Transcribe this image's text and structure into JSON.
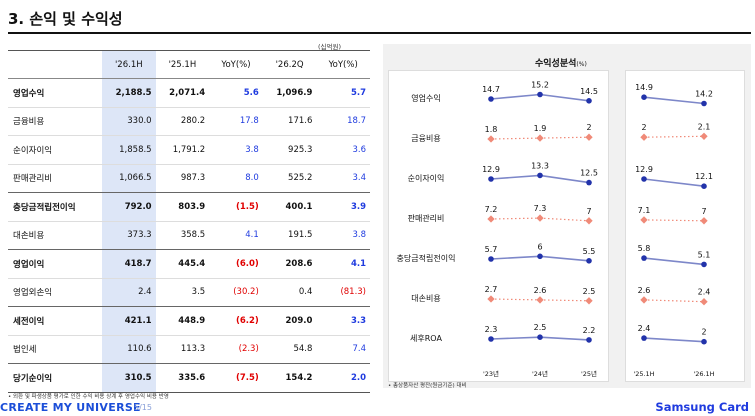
{
  "page": {
    "title": "3. 손익 및 수익성",
    "unit": "(십억원)",
    "table_note": "• 외환 및 파생상품 평가로 인한 수익 비용 상계 후 영업수익 비용 반영",
    "footer_brand": "CREATE MY UNIVERSE",
    "footer_page": "5/15",
    "footer_logo": "Samsung Card"
  },
  "table": {
    "headers": [
      "",
      "'26.1H",
      "'25.1H",
      "YoY(%)",
      "'26.2Q",
      "YoY(%)"
    ],
    "rows": [
      {
        "label": "영업수익",
        "bold": true,
        "values": [
          "2,188.5",
          "2,071.4",
          "5.6",
          "1,096.9",
          "5.7"
        ]
      },
      {
        "label": "금융비용",
        "bold": false,
        "values": [
          "330.0",
          "280.2",
          "17.8",
          "171.6",
          "18.7"
        ]
      },
      {
        "label": "순이자이익",
        "bold": false,
        "values": [
          "1,858.5",
          "1,791.2",
          "3.8",
          "925.3",
          "3.6"
        ]
      },
      {
        "label": "판매관리비",
        "bold": false,
        "values": [
          "1,066.5",
          "987.3",
          "8.0",
          "525.2",
          "3.4"
        ]
      },
      {
        "label": "충당금적립전이익",
        "bold": true,
        "values": [
          "792.0",
          "803.9",
          "(1.5)",
          "400.1",
          "3.9"
        ]
      },
      {
        "label": "대손비용",
        "bold": false,
        "values": [
          "373.3",
          "358.5",
          "4.1",
          "191.5",
          "3.8"
        ]
      },
      {
        "label": "영업이익",
        "bold": true,
        "values": [
          "418.7",
          "445.4",
          "(6.0)",
          "208.6",
          "4.1"
        ]
      },
      {
        "label": "영업외손익",
        "bold": false,
        "values": [
          "2.4",
          "3.5",
          "(30.2)",
          "0.4",
          "(81.3)"
        ]
      },
      {
        "label": "세전이익",
        "bold": true,
        "values": [
          "421.1",
          "448.9",
          "(6.2)",
          "209.0",
          "3.3"
        ]
      },
      {
        "label": "법인세",
        "bold": false,
        "values": [
          "110.6",
          "113.3",
          "(2.3)",
          "54.8",
          "7.4"
        ]
      },
      {
        "label": "당기순이익",
        "bold": true,
        "values": [
          "310.5",
          "335.6",
          "(7.5)",
          "154.2",
          "2.0"
        ]
      }
    ]
  },
  "chart_data": {
    "type": "line",
    "title": "수익성분석",
    "title_unit": "(%)",
    "note": "• 총상품자산 평잔(원금기준) 대비",
    "panels": [
      {
        "categories": [
          "'23년",
          "'24년",
          "'25년"
        ]
      },
      {
        "categories": [
          "'25.1H",
          "'26.1H"
        ]
      }
    ],
    "series": [
      {
        "name": "영업수익",
        "style": "solid",
        "color": "#2233aa",
        "panel1": [
          14.7,
          15.2,
          14.5
        ],
        "panel2": [
          14.9,
          14.2
        ]
      },
      {
        "name": "금융비용",
        "style": "dotted",
        "color": "#f08a78",
        "panel1": [
          1.8,
          1.9,
          2.0
        ],
        "panel2": [
          2.0,
          2.1
        ]
      },
      {
        "name": "순이자이익",
        "style": "solid",
        "color": "#2233aa",
        "panel1": [
          12.9,
          13.3,
          12.5
        ],
        "panel2": [
          12.9,
          12.1
        ]
      },
      {
        "name": "판매관리비",
        "style": "dotted",
        "color": "#f08a78",
        "panel1": [
          7.2,
          7.3,
          7.0
        ],
        "panel2": [
          7.1,
          7.0
        ]
      },
      {
        "name": "충당금적립전이익",
        "style": "solid",
        "color": "#2233aa",
        "panel1": [
          5.7,
          6.0,
          5.5
        ],
        "panel2": [
          5.8,
          5.1
        ]
      },
      {
        "name": "대손비용",
        "style": "dotted",
        "color": "#f08a78",
        "panel1": [
          2.7,
          2.6,
          2.5
        ],
        "panel2": [
          2.6,
          2.4
        ]
      },
      {
        "name": "세후ROA",
        "style": "solid",
        "color": "#2233aa",
        "panel1": [
          2.3,
          2.5,
          2.2
        ],
        "panel2": [
          2.4,
          2.0
        ]
      }
    ]
  },
  "colors": {
    "accent_blue": "#1f3bdf",
    "negative_red": "#e00000",
    "highlight_col": "#dde6f7",
    "line_blue": "#2233aa",
    "line_salmon": "#f08a78"
  }
}
